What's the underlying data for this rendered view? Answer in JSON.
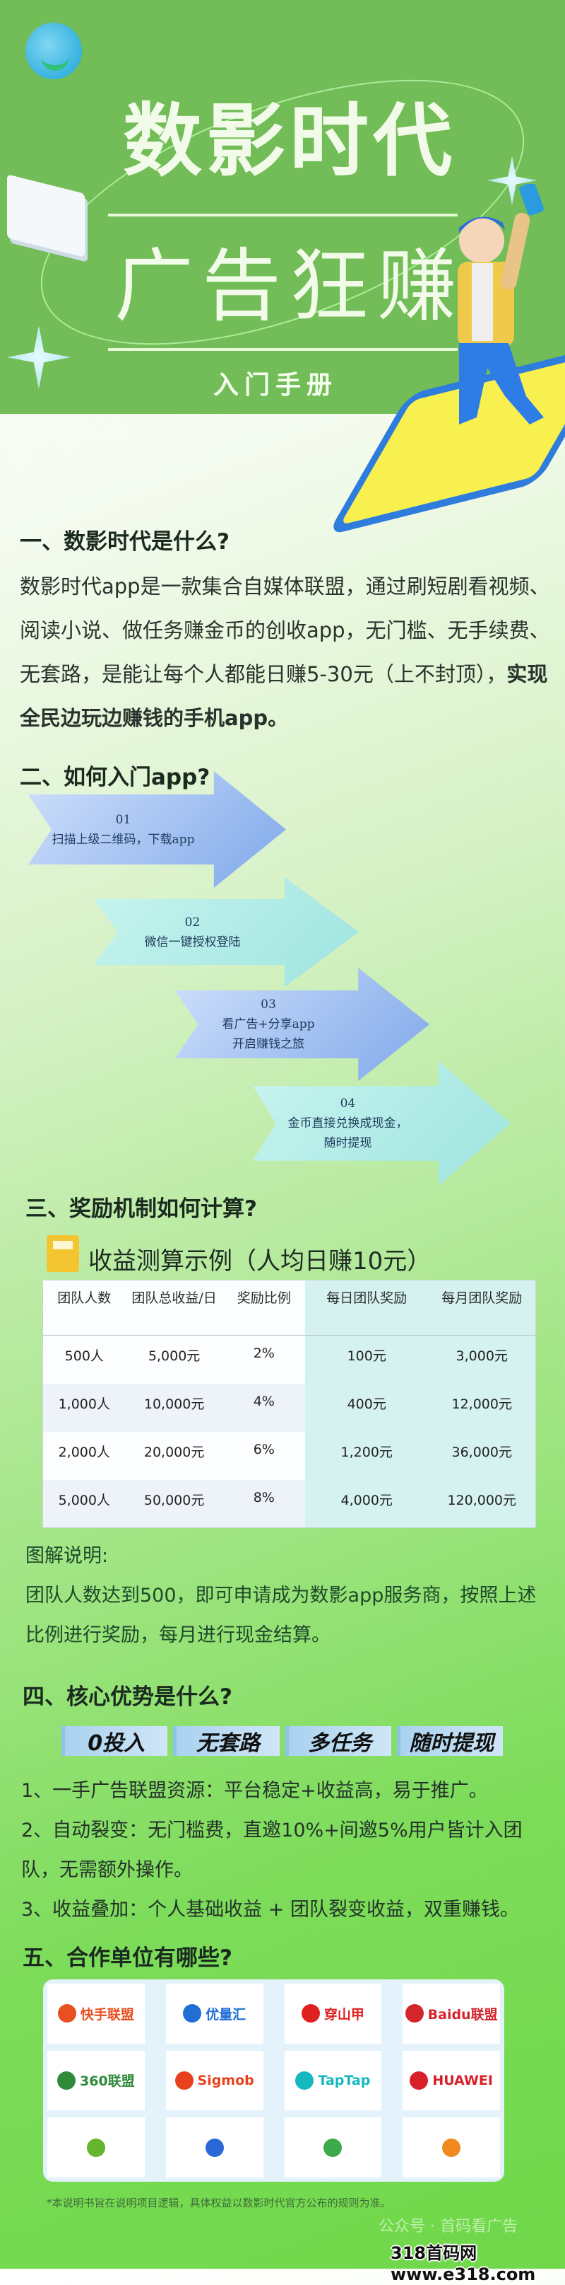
{
  "header": {
    "title_line1": "数影时代",
    "title_line2": "广告狂赚",
    "subtitle": "入门手册"
  },
  "section1": {
    "heading": "一、数影时代是什么?",
    "body": "数影时代app是一款集合自媒体联盟，通过刷短剧看视频、阅读小说、做任务赚金币的创收app，无门槛、无手续费、无套路，是能让每个人都能日赚5-30元（上不封顶），",
    "body_bold": "实现全民边玩边赚钱的手机app。"
  },
  "section2": {
    "heading": "二、如何入门app?",
    "steps": [
      {
        "num": "01",
        "lines": [
          "扫描上级二维码，下载app"
        ]
      },
      {
        "num": "02",
        "lines": [
          "微信一键授权登陆"
        ]
      },
      {
        "num": "03",
        "lines": [
          "看广告+分享app",
          "开启赚钱之旅"
        ]
      },
      {
        "num": "04",
        "lines": [
          "金币直接兑换成现金，",
          "随时提现"
        ]
      }
    ]
  },
  "section3": {
    "heading": "三、奖励机制如何计算?",
    "card_title": "收益测算示例（人均日赚10元）",
    "table": {
      "headers": [
        "团队人数",
        "团队总收益/日",
        "奖励比例",
        "每日团队奖励",
        "每月团队奖励"
      ],
      "rows": [
        [
          "500人",
          "5,000元",
          "2%",
          "100元",
          "3,000元"
        ],
        [
          "1,000人",
          "10,000元",
          "4%",
          "400元",
          "12,000元"
        ],
        [
          "2,000人",
          "20,000元",
          "6%",
          "1,200元",
          "36,000元"
        ],
        [
          "5,000人",
          "50,000元",
          "8%",
          "4,000元",
          "120,000元"
        ]
      ]
    },
    "note_title": "图解说明:",
    "note_body": "团队人数达到500，即可申请成为数影app服务商，按照上述比例进行奖励，每月进行现金结算。"
  },
  "section4": {
    "heading": "四、核心优势是什么?",
    "badges": [
      "0投入",
      "无套路",
      "多任务",
      "随时提现"
    ],
    "items": [
      "1、一手广告联盟资源：平台稳定+收益高，易于推广。",
      "2、自动裂变：无门槛费，直邀10%+间邀5%用户皆计入团队，无需额外操作。",
      "3、收益叠加：个人基础收益 + 团队裂变收益，双重赚钱。"
    ]
  },
  "section5": {
    "heading": "五、合作单位有哪些?",
    "partners": [
      {
        "name": "快手联盟",
        "icon": "kuaishou-logo-icon",
        "color": "#e8501f"
      },
      {
        "name": "优量汇",
        "icon": "youlianghui-logo-icon",
        "color": "#1f6fd6"
      },
      {
        "name": "穿山甲",
        "icon": "pangle-logo-icon",
        "color": "#e02020"
      },
      {
        "name": "Baidu联盟",
        "icon": "baidu-paw-icon",
        "color": "#d4242c"
      },
      {
        "name": "360联盟",
        "icon": "360-logo-icon",
        "color": "#2f8a3a"
      },
      {
        "name": "Sigmob",
        "icon": "sigmob-logo-icon",
        "color": "#e8411d"
      },
      {
        "name": "TapTap",
        "icon": "taptap-logo-icon",
        "color": "#16b8c0"
      },
      {
        "name": "HUAWEI",
        "icon": "huawei-flower-icon",
        "color": "#d8202a"
      },
      {
        "name": "",
        "icon": "lightning-circle-icon",
        "color": "#67b52e"
      },
      {
        "name": "",
        "icon": "m-logo-icon",
        "color": "#2a68d8"
      },
      {
        "name": "",
        "icon": "hexagon-leaf-icon",
        "color": "#3aaa4a"
      },
      {
        "name": "",
        "icon": "x-pattern-logo-icon",
        "color": "#f08a1e"
      }
    ],
    "disclaimer": "*本说明书旨在说明项目逻辑，具体权益以数影时代官方公布的规则为准。"
  },
  "watermark": {
    "account": "公众号 · 首码看广告",
    "site": "318首码网 www.e318.com"
  },
  "colors": {
    "header_green": "#72bd57",
    "title_text": "#f2fbe9",
    "badge_blue": "#a9d2ef",
    "calc_yellow": "#f2c531"
  }
}
